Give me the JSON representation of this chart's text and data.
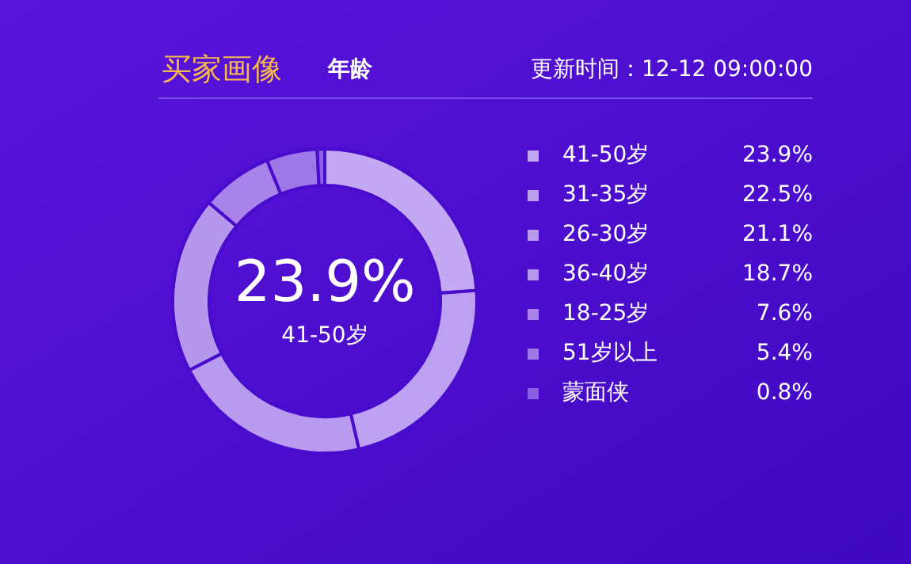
{
  "chart_data": {
    "type": "donut",
    "title": "买家画像",
    "subtitle": "年龄",
    "annotations": [
      "更新时间：12-12 09:00:00",
      "23.9%",
      "41-50岁"
    ],
    "categories": [
      "41-50岁",
      "31-35岁",
      "26-30岁",
      "36-40岁",
      "18-25岁",
      "51岁以上",
      "蒙面侠"
    ],
    "values": [
      23.9,
      22.5,
      21.1,
      18.7,
      7.6,
      5.4,
      0.8
    ],
    "colors": [
      "#c3a9f3",
      "#bca0f1",
      "#b89bef",
      "#b597ee",
      "#a883ea",
      "#9f78e8",
      "#8b60e2"
    ],
    "value_labels": [
      "23.9%",
      "22.5%",
      "21.1%",
      "18.7%",
      "7.6%",
      "5.4%",
      "0.8%"
    ],
    "legend": "right"
  }
}
